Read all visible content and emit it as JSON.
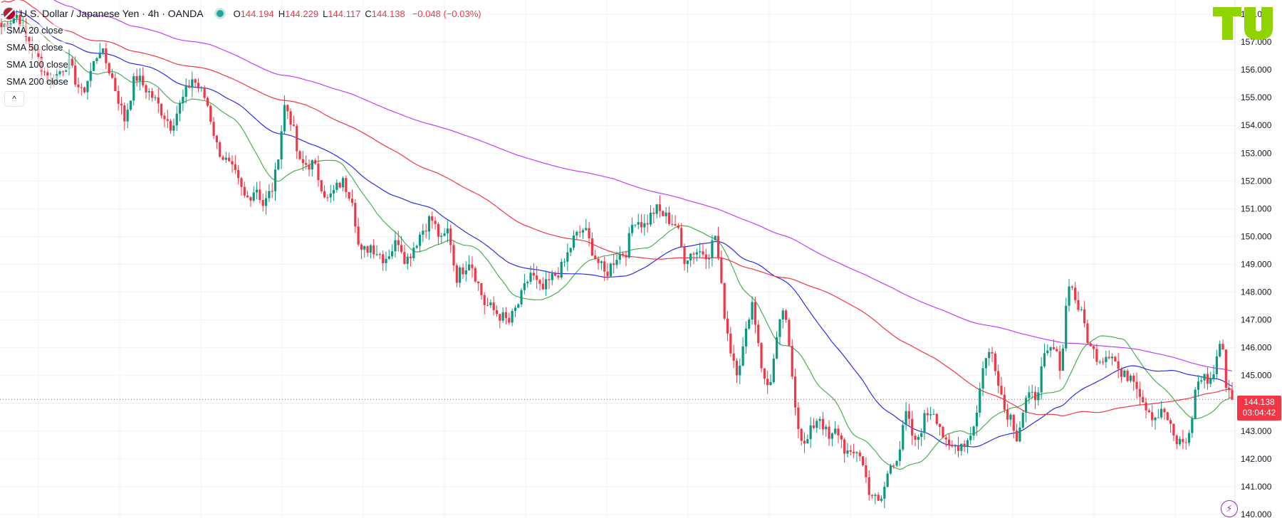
{
  "header": {
    "symbol_title": "U.S. Dollar / Japanese Yen · 4h · OANDA",
    "open_label": "O",
    "open": "144.194",
    "high_label": "H",
    "high": "144.229",
    "low_label": "L",
    "low": "144.117",
    "close_label": "C",
    "close": "144.138",
    "change": "−0.048 (−0.03%)"
  },
  "indicators": [
    {
      "label": "SMA 20 close",
      "color": "#4caf50"
    },
    {
      "label": "SMA 50 close",
      "color": "#2a2ee6"
    },
    {
      "label": "SMA 100 close",
      "color": "#f23645"
    },
    {
      "label": "SMA 200 close",
      "color": "#c040fb"
    }
  ],
  "collapse_glyph": "^",
  "logo_text": "TV",
  "last_price": {
    "price": "144.138",
    "countdown": "03:04:42",
    "color": "#f23645"
  },
  "colors": {
    "up": "#089981",
    "down": "#f23645"
  },
  "chart_data": {
    "type": "candlestick",
    "y_ticks": [
      "140.000",
      "141.000",
      "142.000",
      "143.000",
      "144.000",
      "145.000",
      "146.000",
      "147.000",
      "148.000",
      "149.000",
      "150.000",
      "151.000",
      "152.000",
      "153.000",
      "154.000",
      "155.000",
      "156.000",
      "157.000",
      "158.000"
    ],
    "ylim": [
      140.0,
      158.6
    ],
    "grid": true,
    "last_price_line": 144.138,
    "price_path_anchors": [
      [
        0,
        157.5
      ],
      [
        25,
        158.0
      ],
      [
        35,
        157.2
      ],
      [
        50,
        156.6
      ],
      [
        70,
        155.5
      ],
      [
        95,
        156.3
      ],
      [
        115,
        155.1
      ],
      [
        140,
        156.8
      ],
      [
        155,
        155.9
      ],
      [
        175,
        154.2
      ],
      [
        190,
        155.8
      ],
      [
        215,
        155.0
      ],
      [
        240,
        154.0
      ],
      [
        270,
        155.7
      ],
      [
        290,
        154.9
      ],
      [
        305,
        153.2
      ],
      [
        330,
        152.2
      ],
      [
        345,
        151.3
      ],
      [
        360,
        151.8
      ],
      [
        370,
        151.1
      ],
      [
        385,
        151.9
      ],
      [
        400,
        154.8
      ],
      [
        410,
        154.1
      ],
      [
        420,
        152.6
      ],
      [
        440,
        152.6
      ],
      [
        460,
        151.3
      ],
      [
        480,
        152.0
      ],
      [
        495,
        151.4
      ],
      [
        505,
        149.3
      ],
      [
        520,
        149.7
      ],
      [
        540,
        149.2
      ],
      [
        560,
        149.9
      ],
      [
        570,
        149.1
      ],
      [
        590,
        150.1
      ],
      [
        605,
        150.7
      ],
      [
        620,
        149.8
      ],
      [
        630,
        150.3
      ],
      [
        640,
        148.5
      ],
      [
        660,
        149.2
      ],
      [
        680,
        147.6
      ],
      [
        700,
        147.2
      ],
      [
        715,
        146.9
      ],
      [
        730,
        147.7
      ],
      [
        745,
        148.7
      ],
      [
        760,
        148.0
      ],
      [
        775,
        148.5
      ],
      [
        790,
        148.9
      ],
      [
        805,
        149.9
      ],
      [
        820,
        150.3
      ],
      [
        835,
        149.3
      ],
      [
        850,
        148.6
      ],
      [
        865,
        149.3
      ],
      [
        880,
        149.5
      ],
      [
        890,
        150.7
      ],
      [
        905,
        150.4
      ],
      [
        920,
        151.0
      ],
      [
        935,
        150.7
      ],
      [
        950,
        150.4
      ],
      [
        960,
        149.2
      ],
      [
        975,
        149.5
      ],
      [
        995,
        149.4
      ],
      [
        1005,
        150.1
      ],
      [
        1015,
        147.6
      ],
      [
        1025,
        146.0
      ],
      [
        1035,
        145.2
      ],
      [
        1045,
        146.1
      ],
      [
        1055,
        147.8
      ],
      [
        1065,
        146.2
      ],
      [
        1072,
        144.8
      ],
      [
        1080,
        144.6
      ],
      [
        1090,
        146.1
      ],
      [
        1100,
        147.5
      ],
      [
        1110,
        145.5
      ],
      [
        1120,
        143.3
      ],
      [
        1130,
        142.4
      ],
      [
        1140,
        143.1
      ],
      [
        1150,
        143.6
      ],
      [
        1165,
        142.6
      ],
      [
        1175,
        143.1
      ],
      [
        1185,
        142.4
      ],
      [
        1195,
        142.0
      ],
      [
        1205,
        142.4
      ],
      [
        1220,
        140.9
      ],
      [
        1235,
        140.3
      ],
      [
        1250,
        141.8
      ],
      [
        1262,
        142.2
      ],
      [
        1272,
        143.6
      ],
      [
        1285,
        142.5
      ],
      [
        1300,
        143.6
      ],
      [
        1310,
        143.8
      ],
      [
        1320,
        143.2
      ],
      [
        1330,
        142.3
      ],
      [
        1345,
        142.5
      ],
      [
        1360,
        142.7
      ],
      [
        1372,
        143.7
      ],
      [
        1380,
        145.4
      ],
      [
        1392,
        145.9
      ],
      [
        1400,
        145.1
      ],
      [
        1410,
        143.8
      ],
      [
        1420,
        143.5
      ],
      [
        1428,
        142.8
      ],
      [
        1440,
        144.1
      ],
      [
        1455,
        144.3
      ],
      [
        1465,
        145.5
      ],
      [
        1478,
        146.0
      ],
      [
        1490,
        145.3
      ],
      [
        1500,
        148.5
      ],
      [
        1512,
        147.6
      ],
      [
        1522,
        146.9
      ],
      [
        1530,
        146.0
      ],
      [
        1545,
        145.6
      ],
      [
        1560,
        145.9
      ],
      [
        1575,
        144.9
      ],
      [
        1590,
        145.1
      ],
      [
        1605,
        144.1
      ],
      [
        1620,
        143.5
      ],
      [
        1635,
        143.7
      ],
      [
        1650,
        142.6
      ],
      [
        1660,
        142.6
      ],
      [
        1670,
        142.8
      ],
      [
        1680,
        144.8
      ],
      [
        1695,
        144.9
      ],
      [
        1703,
        144.9
      ],
      [
        1710,
        146.1
      ],
      [
        1718,
        145.8
      ],
      [
        1722,
        144.5
      ],
      [
        1730,
        144.2
      ],
      [
        1734,
        144.14
      ]
    ],
    "candle_x_range": [
      0,
      1734
    ],
    "candle_step": 4.32
  }
}
